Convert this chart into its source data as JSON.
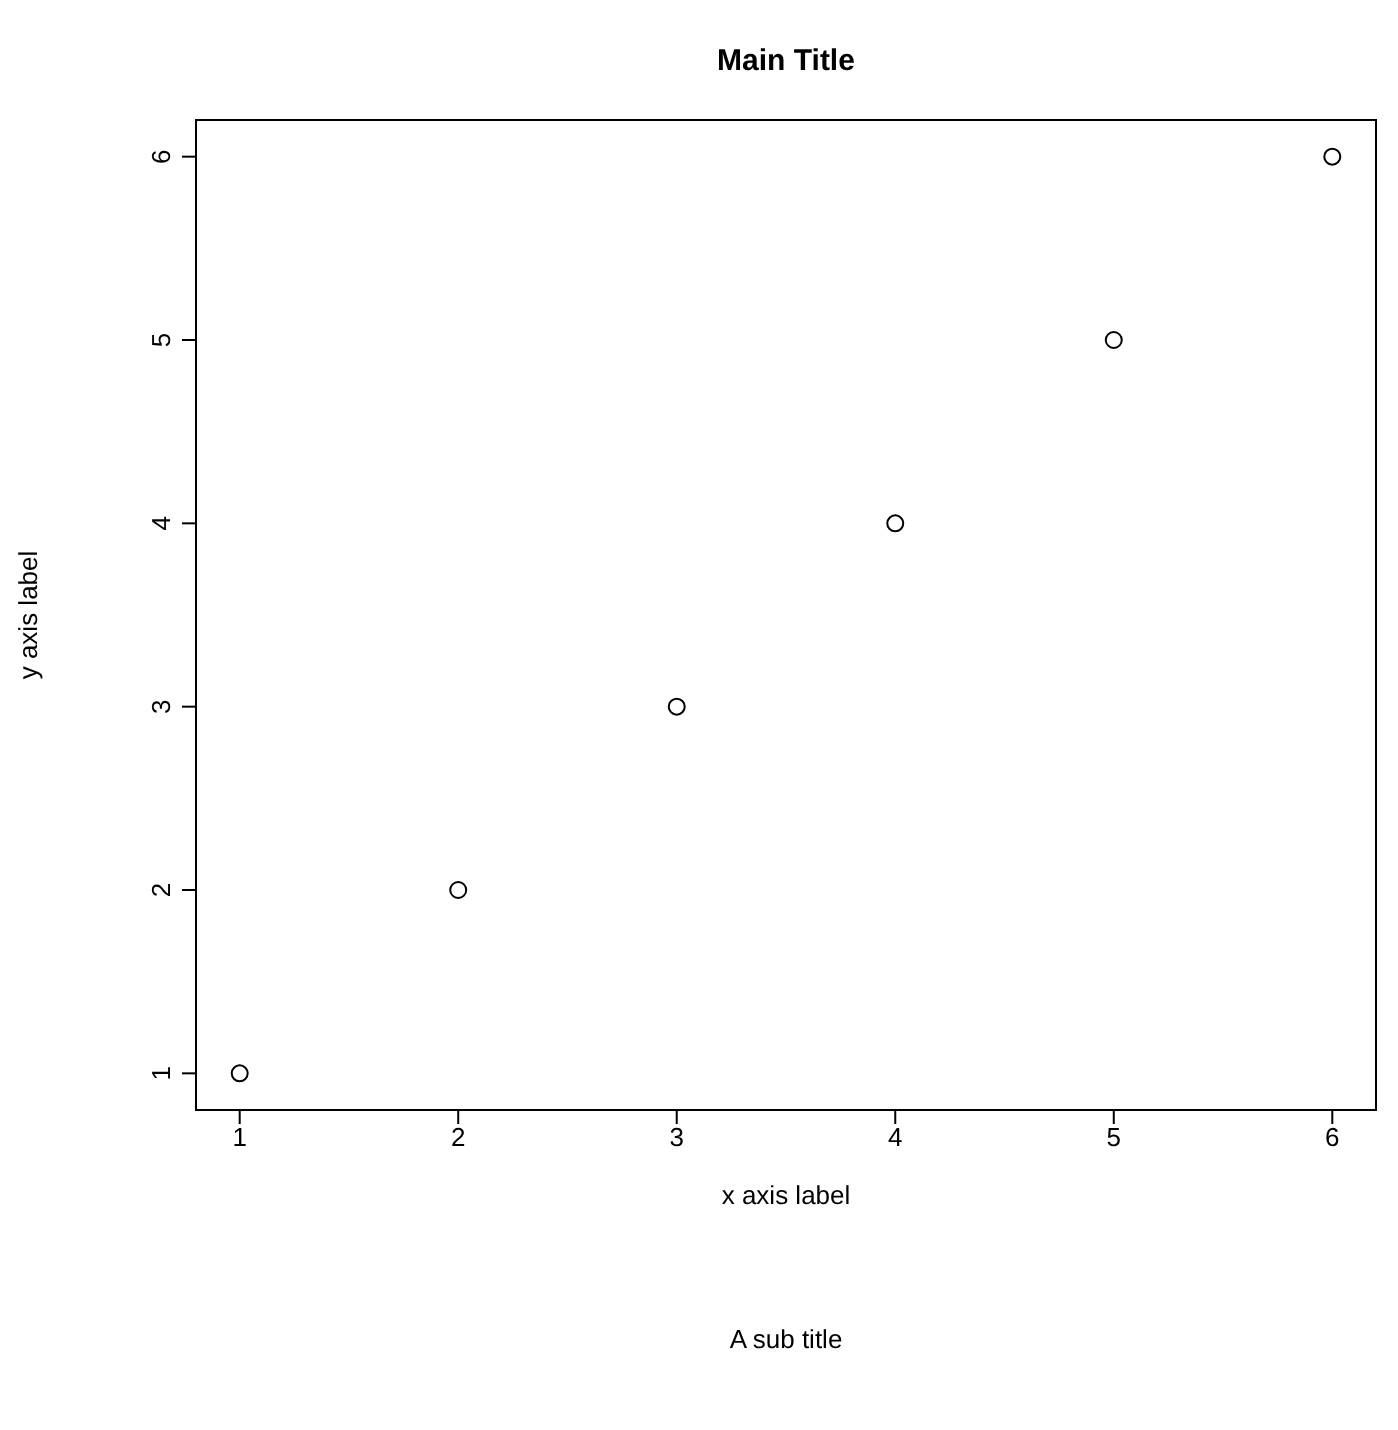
{
  "chart_data": {
    "type": "scatter",
    "title": "Main Title",
    "subtitle": "A sub title",
    "xlabel": "x axis label",
    "ylabel": "y axis label",
    "x": [
      1,
      2,
      3,
      4,
      5,
      6
    ],
    "values": [
      1,
      2,
      3,
      4,
      5,
      6
    ],
    "color": "#000000",
    "marker": "circle",
    "xlim": [
      0.8,
      6.2
    ],
    "ylim": [
      0.8,
      6.2
    ],
    "xticks": [
      1,
      2,
      3,
      4,
      5,
      6
    ],
    "yticks": [
      1,
      2,
      3,
      4,
      5,
      6
    ]
  }
}
